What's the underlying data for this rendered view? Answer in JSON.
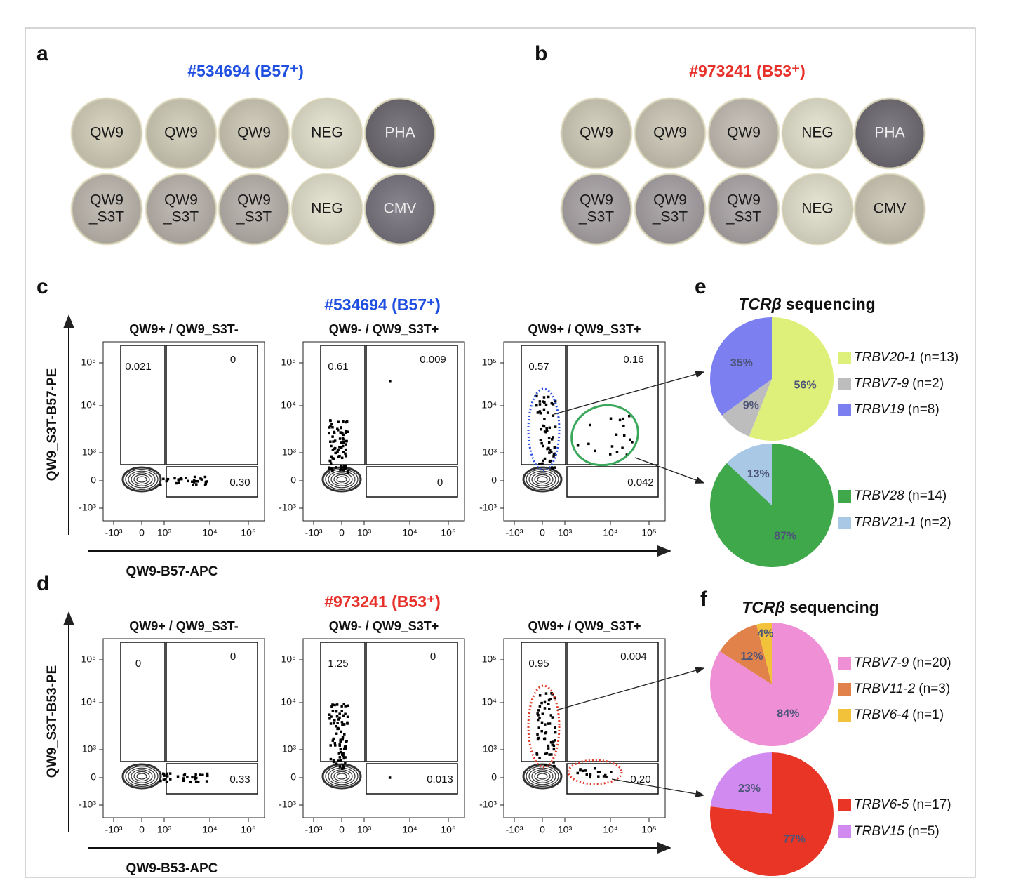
{
  "wells_panels": [
    {
      "letter": "a",
      "title": "#534694 (B57⁺)",
      "title_color": "#1f4fe0",
      "wells": [
        [
          {
            "label": [
              "QW9"
            ],
            "color": "#d3cfb9"
          },
          {
            "label": [
              "QW9"
            ],
            "color": "#d0ccb8"
          },
          {
            "label": [
              "QW9"
            ],
            "color": "#cdc8b6"
          },
          {
            "label": [
              "NEG"
            ],
            "color": "#e3e1cd"
          },
          {
            "label": [
              "PHA"
            ],
            "color": "#6c6970"
          }
        ],
        [
          {
            "label": [
              "QW9",
              "_S3T"
            ],
            "color": "#bdb7ae"
          },
          {
            "label": [
              "QW9",
              "_S3T"
            ],
            "color": "#bab4ac"
          },
          {
            "label": [
              "QW9",
              "_S3T"
            ],
            "color": "#b8b2ab"
          },
          {
            "label": [
              "NEG"
            ],
            "color": "#e3e1cd"
          },
          {
            "label": [
              "CMV"
            ],
            "color": "#78747e"
          }
        ]
      ]
    },
    {
      "letter": "b",
      "title": "#973241 (B53⁺)",
      "title_color": "#e8302a",
      "wells": [
        [
          {
            "label": [
              "QW9"
            ],
            "color": "#cfcbb8"
          },
          {
            "label": [
              "QW9"
            ],
            "color": "#ccc7b6"
          },
          {
            "label": [
              "QW9"
            ],
            "color": "#c3bdb3"
          },
          {
            "label": [
              "NEG"
            ],
            "color": "#e3e1cd"
          },
          {
            "label": [
              "PHA"
            ],
            "color": "#6f6b73"
          }
        ],
        [
          {
            "label": [
              "QW9",
              "_S3T"
            ],
            "color": "#aaa4a6"
          },
          {
            "label": [
              "QW9",
              "_S3T"
            ],
            "color": "#a7a1a4"
          },
          {
            "label": [
              "QW9",
              "_S3T"
            ],
            "color": "#aca6a7"
          },
          {
            "label": [
              "NEG"
            ],
            "color": "#e3e1cd"
          },
          {
            "label": [
              "CMV"
            ],
            "color": "#ccc7b5"
          }
        ]
      ]
    }
  ],
  "flow_panels": [
    {
      "letter": "c",
      "title": "#534694 (B57⁺)",
      "title_color": "#1f4fe0",
      "y_label": "QW9_S3T-B57-PE",
      "x_label": "QW9-B57-APC",
      "yticks": [
        "10⁵",
        "10⁴",
        "10³",
        "0",
        "-10³"
      ],
      "xticks": [
        "-10³",
        "0",
        "10³",
        "10⁴",
        "10⁵"
      ],
      "plots": [
        {
          "title": "QW9+ / QW9_S3T-",
          "gates": [
            "0.021",
            "0",
            "0.30"
          ]
        },
        {
          "title": "QW9- / QW9_S3T+",
          "gates": [
            "0.61",
            "0.009",
            "0"
          ]
        },
        {
          "title": "QW9+ / QW9_S3T+",
          "gates": [
            "0.57",
            "0.16",
            "0.042"
          ]
        }
      ]
    },
    {
      "letter": "d",
      "title": "#973241 (B53⁺)",
      "title_color": "#e8302a",
      "y_label": "QW9_S3T-B53-PE",
      "x_label": "QW9-B53-APC",
      "yticks": [
        "10⁵",
        "10⁴",
        "10³",
        "0",
        "-10³"
      ],
      "xticks": [
        "-10³",
        "0",
        "10³",
        "10⁴",
        "10⁵"
      ],
      "plots": [
        {
          "title": "QW9+ / QW9_S3T-",
          "gates": [
            "0",
            "0",
            "0.33"
          ]
        },
        {
          "title": "QW9- / QW9_S3T+",
          "gates": [
            "1.25",
            "0",
            "0.013"
          ]
        },
        {
          "title": "QW9+ / QW9_S3T+",
          "gates": [
            "0.95",
            "0.004",
            "0.20"
          ]
        }
      ]
    }
  ],
  "pie_panels": [
    {
      "letter": "e",
      "title": [
        "TCRβ",
        "sequencing"
      ],
      "pies": [
        {
          "slices": [
            {
              "name": "TRBV20-1",
              "n": "(n=13)",
              "value": 56,
              "value_label": "56%",
              "color": "#dff07a"
            },
            {
              "name": "TRBV7-9",
              "n": "(n=2)",
              "value": 9,
              "value_label": "9%",
              "color": "#bdbdbd"
            },
            {
              "name": "TRBV19",
              "n": "(n=8)",
              "value": 35,
              "value_label": "35%",
              "color": "#7b7ff0"
            }
          ]
        },
        {
          "slices": [
            {
              "name": "TRBV28",
              "n": "(n=14)",
              "value": 87,
              "value_label": "87%",
              "color": "#3ea84a"
            },
            {
              "name": "TRBV21-1",
              "n": "(n=2)",
              "value": 13,
              "value_label": "13%",
              "color": "#a8c8e6"
            }
          ]
        }
      ]
    },
    {
      "letter": "f",
      "title": [
        "TCRβ",
        "sequencing"
      ],
      "pies": [
        {
          "slices": [
            {
              "name": "TRBV7-9",
              "n": "(n=20)",
              "value": 84,
              "value_label": "84%",
              "color": "#ef8fd6"
            },
            {
              "name": "TRBV11-2",
              "n": "(n=3)",
              "value": 12,
              "value_label": "12%",
              "color": "#e0824a"
            },
            {
              "name": "TRBV6-4",
              "n": "(n=1)",
              "value": 4,
              "value_label": "4%",
              "color": "#f2c23a"
            }
          ]
        },
        {
          "slices": [
            {
              "name": "TRBV6-5",
              "n": "(n=17)",
              "value": 77,
              "value_label": "77%",
              "color": "#e83526"
            },
            {
              "name": "TRBV15",
              "n": "(n=5)",
              "value": 23,
              "value_label": "23%",
              "color": "#d08af0"
            }
          ]
        }
      ]
    }
  ]
}
